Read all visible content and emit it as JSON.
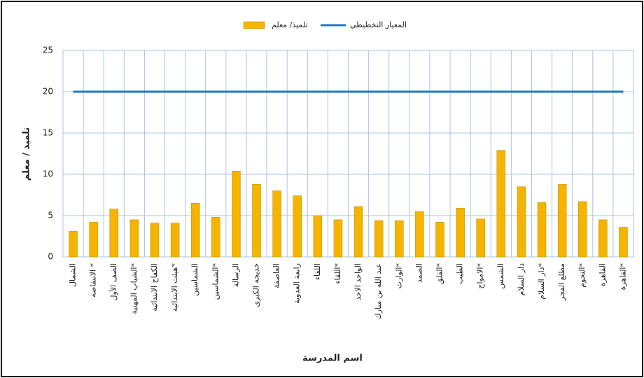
{
  "chart_data": {
    "type": "bar",
    "y_label": "تلميذ / معلم",
    "x_label": "اسم المدرسة",
    "categories": [
      "الشمال",
      "الانتفاضة *",
      "الصف الأول",
      "الشباب المهنية*",
      "الكفاح الابتدائية",
      "هيئت الابتدائية*",
      "الشماسين",
      "الشماسين*",
      "الرسالة",
      "خديجة الكبرى",
      "العاصفة",
      "رابعة العدوية",
      "اللقاء",
      "اللقاء*",
      "الواحد الاحد",
      "عبد الله بن مبارك",
      "الوارث*",
      "الصمد",
      "الفلق*",
      "الطيب",
      "الامواج*",
      "الشمس",
      "دار السلام",
      "دار السلام*",
      "مطلع الفجر",
      "النجوم*",
      "القاهرة",
      "القاهرة*"
    ],
    "series": [
      {
        "name": "تلميذ/ معلم",
        "type": "bar",
        "color": "#f4b400",
        "values": [
          3.1,
          4.2,
          5.8,
          4.5,
          4.1,
          4.1,
          6.5,
          4.8,
          10.4,
          8.8,
          8.0,
          7.4,
          5.0,
          4.5,
          6.1,
          4.4,
          4.4,
          5.5,
          4.2,
          5.9,
          4.6,
          12.9,
          8.5,
          6.6,
          8.8,
          6.7,
          4.5,
          3.6
        ]
      },
      {
        "name": "المعيار التخطيطي",
        "type": "line",
        "color": "#1f78c8",
        "values": [
          20,
          20,
          20,
          20,
          20,
          20,
          20,
          20,
          20,
          20,
          20,
          20,
          20,
          20,
          20,
          20,
          20,
          20,
          20,
          20,
          20,
          20,
          20,
          20,
          20,
          20,
          20,
          20
        ]
      }
    ],
    "ylim": [
      0,
      25
    ],
    "yticks": [
      0,
      5,
      10,
      15,
      20,
      25
    ],
    "grid": true
  }
}
